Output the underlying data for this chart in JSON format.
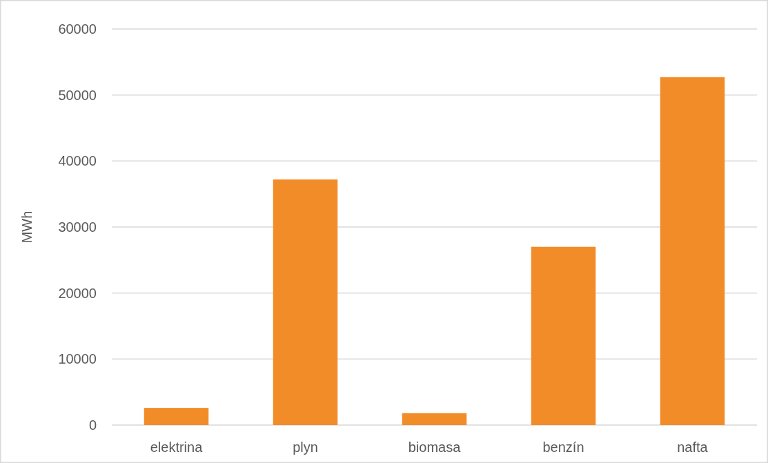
{
  "chart_data": {
    "type": "bar",
    "ylabel": "MWh",
    "categories": [
      "elektrina",
      "plyn",
      "biomasa",
      "benzín",
      "nafta"
    ],
    "values": [
      2600,
      37200,
      1800,
      27000,
      52700
    ],
    "color": "#f28c28",
    "ylim": [
      0,
      60000
    ],
    "yticks": [
      0,
      10000,
      20000,
      30000,
      40000,
      50000,
      60000
    ],
    "grid": "y"
  }
}
